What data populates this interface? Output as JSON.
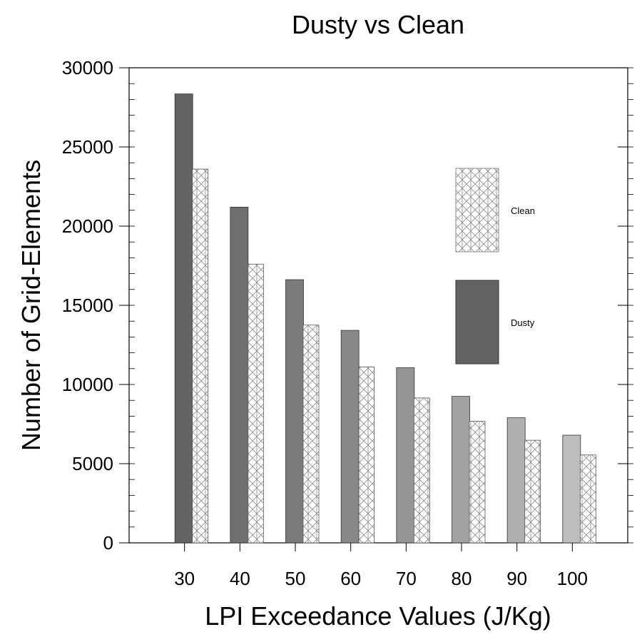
{
  "chart_data": {
    "type": "bar",
    "title": "Dusty vs Clean",
    "xlabel": "LPI Exceedance Values (J/Kg)",
    "ylabel": "Number of Grid-Elements",
    "categories": [
      "30",
      "40",
      "50",
      "60",
      "70",
      "80",
      "90",
      "100"
    ],
    "x_values": [
      30,
      40,
      50,
      60,
      70,
      80,
      90,
      100
    ],
    "xlim": [
      20,
      110
    ],
    "ylim": [
      0,
      30000
    ],
    "y_ticks": [
      "0",
      "5000",
      "10000",
      "15000",
      "20000",
      "25000",
      "30000"
    ],
    "grid": false,
    "series": [
      {
        "name": "Dusty",
        "style": "solid",
        "values": [
          28350,
          21200,
          16620,
          13420,
          11060,
          9250,
          7900,
          6800
        ],
        "colors": [
          "#636363",
          "#6f6f6f",
          "#7b7b7b",
          "#888888",
          "#959595",
          "#a2a2a2",
          "#afafaf",
          "#bdbdbd"
        ]
      },
      {
        "name": "Clean",
        "style": "crosshatch",
        "values": [
          23600,
          17600,
          13750,
          11100,
          9150,
          7680,
          6480,
          5550
        ],
        "colors": [
          "#8c8c8c"
        ]
      }
    ],
    "legend": {
      "position": "upper-right",
      "items": [
        {
          "label": "Clean",
          "style": "crosshatch"
        },
        {
          "label": "Dusty",
          "style": "solid",
          "color": "#636363"
        }
      ]
    }
  }
}
